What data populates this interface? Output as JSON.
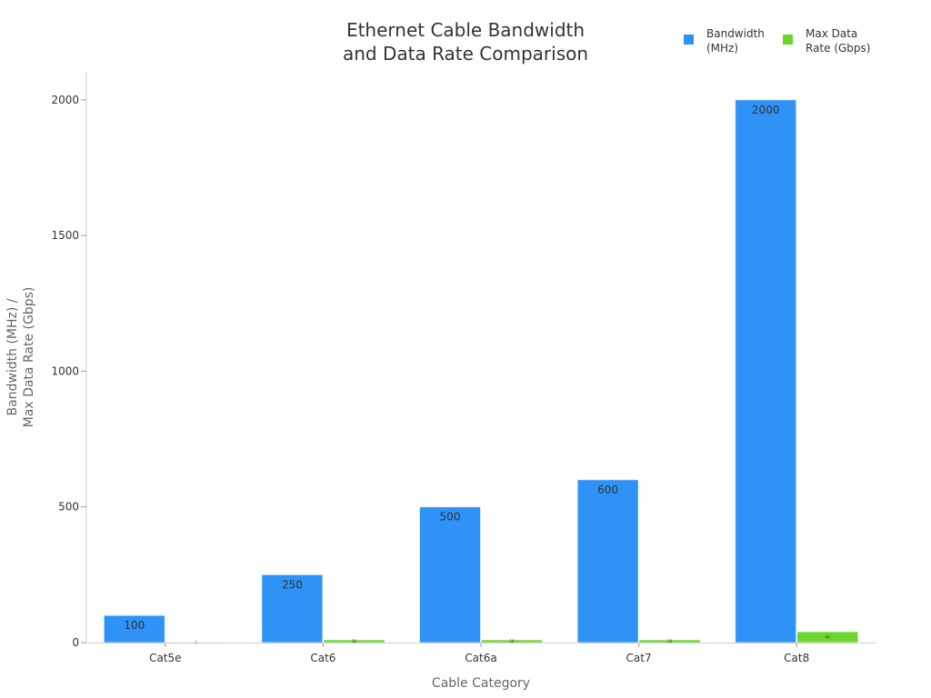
{
  "chart_data": {
    "type": "bar",
    "title": "Ethernet Cable Bandwidth and Data Rate Comparison",
    "categories": [
      "Cat5e",
      "Cat6",
      "Cat6a",
      "Cat7",
      "Cat8"
    ],
    "series": [
      {
        "name": "Bandwidth (MHz)",
        "values": [
          100,
          250,
          500,
          600,
          2000
        ],
        "color": "#2F92F7"
      },
      {
        "name": "Max Data Rate (Gbps)",
        "values": [
          1,
          10,
          10,
          10,
          40
        ],
        "color": "#6CD62E"
      }
    ],
    "xlabel": "Cable Category",
    "ylabel": "Bandwidth (MHz) / Max Data Rate (Gbps)",
    "ylim": [
      0,
      2100
    ],
    "yticks": [
      0,
      500,
      1000,
      1500,
      2000
    ],
    "grid": false,
    "legend": "top-right",
    "data_labels": true
  }
}
